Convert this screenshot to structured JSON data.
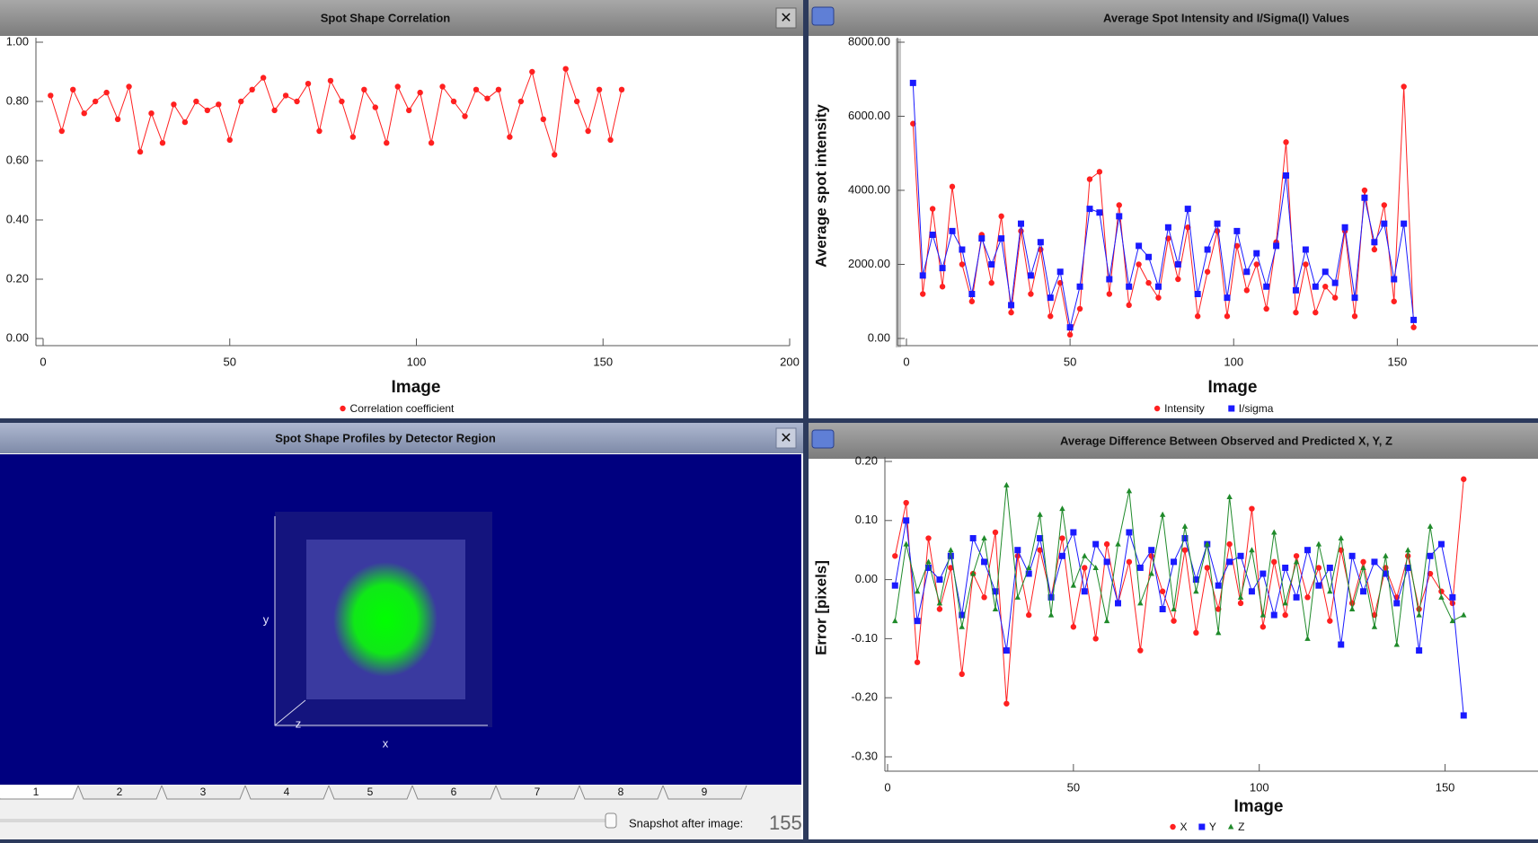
{
  "chart_data": [
    {
      "type": "line",
      "title": "Spot Shape Correlation",
      "xlabel": "Image",
      "x": [
        2,
        5,
        8,
        11,
        14,
        17,
        20,
        23,
        26,
        29,
        32,
        35,
        38,
        41,
        44,
        47,
        50,
        53,
        56,
        59,
        62,
        65,
        68,
        71,
        74,
        77,
        80,
        83,
        86,
        89,
        92,
        95,
        98,
        101,
        104,
        107,
        110,
        113,
        116,
        119,
        122,
        125,
        128,
        131,
        134,
        137,
        140,
        143,
        146,
        149,
        152,
        155
      ],
      "series": [
        {
          "name": "Correlation coefficient",
          "color": "#ff2020",
          "marker": "circle",
          "values": [
            0.82,
            0.7,
            0.84,
            0.76,
            0.8,
            0.83,
            0.74,
            0.85,
            0.63,
            0.76,
            0.66,
            0.79,
            0.73,
            0.8,
            0.77,
            0.79,
            0.67,
            0.8,
            0.84,
            0.88,
            0.77,
            0.82,
            0.8,
            0.86,
            0.7,
            0.87,
            0.8,
            0.68,
            0.84,
            0.78,
            0.66,
            0.85,
            0.77,
            0.83,
            0.66,
            0.85,
            0.8,
            0.75,
            0.84,
            0.81,
            0.84,
            0.68,
            0.8,
            0.9,
            0.74,
            0.62,
            0.91,
            0.8,
            0.7,
            0.84,
            0.67,
            0.84
          ]
        }
      ],
      "xlim": [
        0,
        200
      ],
      "xticks": [
        0,
        50,
        100,
        150,
        200
      ],
      "ylim": [
        0,
        1
      ],
      "yticks": [
        {
          "value": 0,
          "label": "0.00"
        },
        {
          "value": 0.2,
          "label": "0.20"
        },
        {
          "value": 0.4,
          "label": "0.40"
        },
        {
          "value": 0.6,
          "label": "0.60"
        },
        {
          "value": 0.8,
          "label": "0.80"
        },
        {
          "value": 1,
          "label": "1.00"
        }
      ],
      "legend": "bottom"
    },
    {
      "type": "line",
      "title": "Average Spot Intensity and I/Sigma(I) Values",
      "xlabel": "Image",
      "ylabel": "Average spot intensity",
      "x": [
        2,
        5,
        8,
        11,
        14,
        17,
        20,
        23,
        26,
        29,
        32,
        35,
        38,
        41,
        44,
        47,
        50,
        53,
        56,
        59,
        62,
        65,
        68,
        71,
        74,
        77,
        80,
        83,
        86,
        89,
        92,
        95,
        98,
        101,
        104,
        107,
        110,
        113,
        116,
        119,
        122,
        125,
        128,
        131,
        134,
        137,
        140,
        143,
        146,
        149,
        152,
        155
      ],
      "series": [
        {
          "name": "Intensity",
          "color": "#ff2020",
          "marker": "circle",
          "values": [
            5800,
            1200,
            3500,
            1400,
            4100,
            2000,
            1000,
            2800,
            1500,
            3300,
            700,
            2900,
            1200,
            2400,
            600,
            1500,
            100,
            800,
            4300,
            4500,
            1200,
            3600,
            900,
            2000,
            1500,
            1100,
            2700,
            1600,
            3000,
            600,
            1800,
            2900,
            600,
            2500,
            1300,
            2000,
            800,
            2600,
            5300,
            700,
            2000,
            700,
            1400,
            1100,
            2900,
            600,
            4000,
            2400,
            3600,
            1000,
            6800,
            300
          ]
        },
        {
          "name": "I/sigma",
          "color": "#1a1aff",
          "marker": "square",
          "values": [
            6900,
            1700,
            2800,
            1900,
            2900,
            2400,
            1200,
            2700,
            2000,
            2700,
            900,
            3100,
            1700,
            2600,
            1100,
            1800,
            300,
            1400,
            3500,
            3400,
            1600,
            3300,
            1400,
            2500,
            2200,
            1400,
            3000,
            2000,
            3500,
            1200,
            2400,
            3100,
            1100,
            2900,
            1800,
            2300,
            1400,
            2500,
            4400,
            1300,
            2400,
            1400,
            1800,
            1500,
            3000,
            1100,
            3800,
            2600,
            3100,
            1600,
            3100,
            500
          ]
        }
      ],
      "xlim": [
        0,
        193
      ],
      "xticks": [
        0,
        50,
        100,
        150
      ],
      "ylim": [
        0,
        8000
      ],
      "yticks": [
        {
          "value": 0,
          "label": "0.00"
        },
        {
          "value": 2000,
          "label": "2000.00"
        },
        {
          "value": 4000,
          "label": "4000.00"
        },
        {
          "value": 6000,
          "label": "6000.00"
        },
        {
          "value": 8000,
          "label": "8000.00"
        }
      ],
      "legend": "bottom"
    },
    {
      "type": "line",
      "title": "Average Difference Between Observed and Predicted X, Y, Z",
      "xlabel": "Image",
      "ylabel": "Error [pixels]",
      "x": [
        2,
        5,
        8,
        11,
        14,
        17,
        20,
        23,
        26,
        29,
        32,
        35,
        38,
        41,
        44,
        47,
        50,
        53,
        56,
        59,
        62,
        65,
        68,
        71,
        74,
        77,
        80,
        83,
        86,
        89,
        92,
        95,
        98,
        101,
        104,
        107,
        110,
        113,
        116,
        119,
        122,
        125,
        128,
        131,
        134,
        137,
        140,
        143,
        146,
        149,
        152,
        155
      ],
      "series": [
        {
          "name": "X",
          "color": "#ff2020",
          "marker": "circle",
          "values": [
            0.04,
            0.13,
            -0.14,
            0.07,
            -0.05,
            0.02,
            -0.16,
            0.01,
            -0.03,
            0.08,
            -0.21,
            0.04,
            -0.06,
            0.05,
            -0.03,
            0.07,
            -0.08,
            0.02,
            -0.1,
            0.06,
            -0.04,
            0.03,
            -0.12,
            0.04,
            -0.02,
            -0.07,
            0.05,
            -0.09,
            0.02,
            -0.05,
            0.06,
            -0.04,
            0.12,
            -0.08,
            0.03,
            -0.06,
            0.04,
            -0.03,
            0.02,
            -0.07,
            0.05,
            -0.04,
            0.03,
            -0.06,
            0.02,
            -0.03,
            0.04,
            -0.05,
            0.01,
            -0.02,
            -0.04,
            0.17
          ]
        },
        {
          "name": "Y",
          "color": "#1a1aff",
          "marker": "square",
          "values": [
            -0.01,
            0.1,
            -0.07,
            0.02,
            0.0,
            0.04,
            -0.06,
            0.07,
            0.03,
            -0.02,
            -0.12,
            0.05,
            0.01,
            0.07,
            -0.03,
            0.04,
            0.08,
            -0.02,
            0.06,
            0.03,
            -0.04,
            0.08,
            0.02,
            0.05,
            -0.05,
            0.03,
            0.07,
            0.0,
            0.06,
            -0.01,
            0.03,
            0.04,
            -0.02,
            0.01,
            -0.06,
            0.02,
            -0.03,
            0.05,
            -0.01,
            0.02,
            -0.11,
            0.04,
            -0.02,
            0.03,
            0.01,
            -0.04,
            0.02,
            -0.12,
            0.04,
            0.06,
            -0.03,
            -0.23
          ]
        },
        {
          "name": "Z",
          "color": "#1f8a2a",
          "marker": "triangle",
          "values": [
            -0.07,
            0.06,
            -0.02,
            0.03,
            -0.04,
            0.05,
            -0.08,
            0.01,
            0.07,
            -0.05,
            0.16,
            -0.03,
            0.02,
            0.11,
            -0.06,
            0.12,
            -0.01,
            0.04,
            0.02,
            -0.07,
            0.06,
            0.15,
            -0.04,
            0.01,
            0.11,
            -0.05,
            0.09,
            -0.02,
            0.06,
            -0.09,
            0.14,
            -0.03,
            0.05,
            -0.06,
            0.08,
            -0.04,
            0.03,
            -0.1,
            0.06,
            -0.02,
            0.07,
            -0.05,
            0.02,
            -0.08,
            0.04,
            -0.11,
            0.05,
            -0.06,
            0.09,
            -0.03,
            -0.07,
            -0.06
          ]
        }
      ],
      "xlim": [
        0,
        175
      ],
      "xticks": [
        0,
        50,
        100,
        150
      ],
      "ylim": [
        -0.3,
        0.2
      ],
      "yticks": [
        {
          "value": -0.3,
          "label": "-0.30"
        },
        {
          "value": -0.2,
          "label": "-0.20"
        },
        {
          "value": -0.1,
          "label": "-0.10"
        },
        {
          "value": 0,
          "label": "0.00"
        },
        {
          "value": 0.1,
          "label": "0.10"
        },
        {
          "value": 0.2,
          "label": "0.20"
        }
      ],
      "legend": "bottom"
    }
  ],
  "profile_panel": {
    "title": "Spot Shape Profiles by Detector Region",
    "axis_labels": {
      "x": "x",
      "y": "y",
      "z": "z"
    },
    "tabs": [
      "1",
      "2",
      "3",
      "4",
      "5",
      "6",
      "7",
      "8",
      "9"
    ],
    "snapshot_label": "Snapshot after image:",
    "snapshot_value": "155"
  }
}
